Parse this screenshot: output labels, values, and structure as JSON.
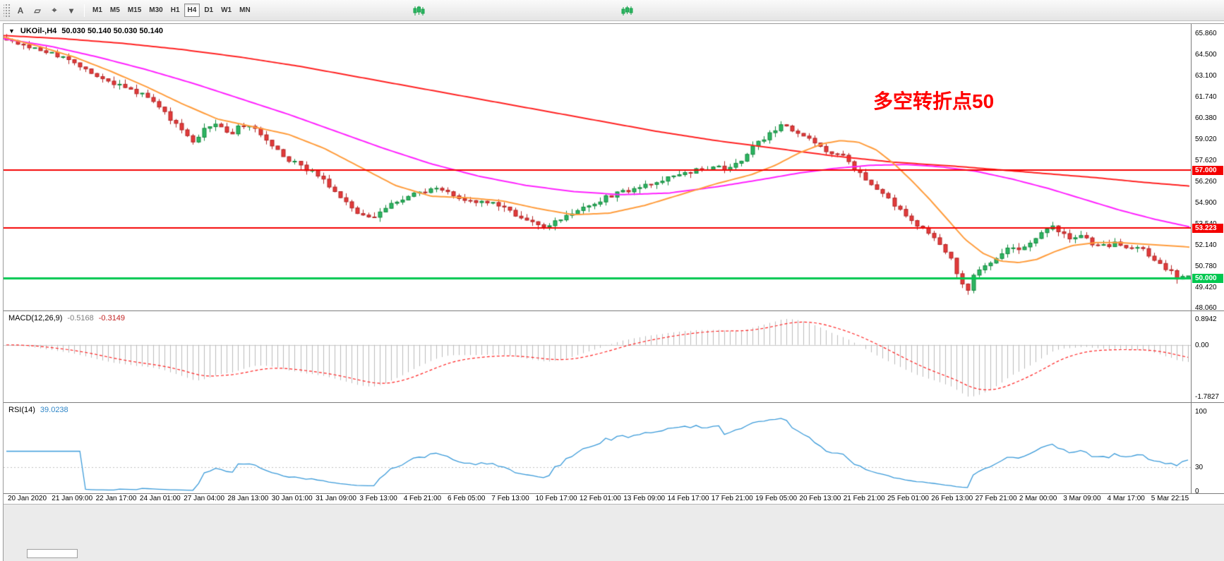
{
  "toolbar": {
    "left_icons": [
      {
        "name": "drag-handle",
        "glyph": ""
      },
      {
        "name": "text-tool",
        "glyph": "A"
      },
      {
        "name": "shapes-tool",
        "glyph": "▱"
      },
      {
        "name": "crosshair-tool",
        "glyph": "⌖"
      },
      {
        "name": "tools-dropdown",
        "glyph": "▾"
      }
    ],
    "timeframes": [
      "M1",
      "M5",
      "M15",
      "M30",
      "H1",
      "H4",
      "D1",
      "W1",
      "MN"
    ],
    "selected_timeframe": "H4",
    "mini_chart_icons": [
      "green-candles-icon-1",
      "green-candles-icon-2"
    ]
  },
  "chart": {
    "collapse_arrow": "▼",
    "symbol_label": "UKOil-,H4",
    "ohlc_label": "50.030 50.140 50.030 50.140",
    "annotation": {
      "text": "多空转折点50",
      "color": "#FF0000"
    },
    "price_axis_labels": [
      "65.860",
      "64.500",
      "63.100",
      "61.740",
      "60.380",
      "59.020",
      "57.620",
      "56.260",
      "54.900",
      "53.540",
      "52.140",
      "50.780",
      "49.420",
      "48.060"
    ],
    "hlines": [
      {
        "price": 57.0,
        "label": "57.000",
        "color": "#F40000",
        "width": 2
      },
      {
        "price": 53.223,
        "label": "53.223",
        "color": "#F40000",
        "width": 2
      },
      {
        "price": 50.0,
        "label": "50.000",
        "color": "#00C850",
        "width": 3
      }
    ]
  },
  "macd": {
    "title": "MACD(12,26,9)",
    "values": [
      "-0.5168",
      "-0.3149"
    ],
    "axis_labels": [
      "0.8942",
      "0.00",
      "-1.7827"
    ]
  },
  "rsi": {
    "title": "RSI(14)",
    "value": "39.0238",
    "axis_labels": [
      "100",
      "30",
      "0"
    ],
    "level": 30
  },
  "time_axis": [
    "20 Jan 2020",
    "21 Jan 09:00",
    "22 Jan 17:00",
    "24 Jan 01:00",
    "27 Jan 04:00",
    "28 Jan 13:00",
    "30 Jan 01:00",
    "31 Jan 09:00",
    "3 Feb 13:00",
    "4 Feb 21:00",
    "6 Feb 05:00",
    "7 Feb 13:00",
    "10 Feb 17:00",
    "12 Feb 01:00",
    "13 Feb 09:00",
    "14 Feb 17:00",
    "17 Feb 21:00",
    "19 Feb 05:00",
    "20 Feb 13:00",
    "21 Feb 21:00",
    "25 Feb 01:00",
    "26 Feb 13:00",
    "27 Feb 21:00",
    "2 Mar 00:00",
    "3 Mar 09:00",
    "4 Mar 17:00",
    "5 Mar 22:15"
  ],
  "chart_data": {
    "type": "candlestick",
    "symbol": "UKOil",
    "timeframe": "H4",
    "n_candles": 210,
    "price_top": 66.45,
    "price_bottom": 47.9,
    "last_ohlc": {
      "open": 50.03,
      "high": 50.14,
      "low": 50.03,
      "close": 50.14
    },
    "price_anchors": [
      [
        0,
        65.5
      ],
      [
        0.02,
        64.9
      ],
      [
        0.04,
        64.5
      ],
      [
        0.055,
        64.0
      ],
      [
        0.075,
        63.2
      ],
      [
        0.1,
        62.3
      ],
      [
        0.115,
        61.9
      ],
      [
        0.125,
        61.5
      ],
      [
        0.14,
        60.2
      ],
      [
        0.152,
        59.3
      ],
      [
        0.158,
        58.8
      ],
      [
        0.165,
        59.4
      ],
      [
        0.175,
        60.1
      ],
      [
        0.185,
        59.5
      ],
      [
        0.19,
        59.4
      ],
      [
        0.2,
        59.9
      ],
      [
        0.21,
        59.6
      ],
      [
        0.226,
        58.4
      ],
      [
        0.24,
        57.6
      ],
      [
        0.255,
        57.0
      ],
      [
        0.263,
        56.7
      ],
      [
        0.275,
        55.8
      ],
      [
        0.29,
        54.6
      ],
      [
        0.3,
        54.0
      ],
      [
        0.308,
        53.8
      ],
      [
        0.32,
        54.6
      ],
      [
        0.33,
        55.0
      ],
      [
        0.337,
        55.2
      ],
      [
        0.35,
        55.5
      ],
      [
        0.36,
        55.7
      ],
      [
        0.374,
        55.6
      ],
      [
        0.385,
        55.2
      ],
      [
        0.395,
        55.0
      ],
      [
        0.411,
        54.9
      ],
      [
        0.425,
        54.3
      ],
      [
        0.44,
        53.8
      ],
      [
        0.448,
        53.6
      ],
      [
        0.455,
        53.4
      ],
      [
        0.47,
        53.8
      ],
      [
        0.485,
        54.5
      ],
      [
        0.5,
        55.0
      ],
      [
        0.522,
        55.6
      ],
      [
        0.54,
        56.0
      ],
      [
        0.559,
        56.4
      ],
      [
        0.58,
        56.9
      ],
      [
        0.596,
        57.2
      ],
      [
        0.61,
        57.1
      ],
      [
        0.62,
        57.4
      ],
      [
        0.633,
        58.6
      ],
      [
        0.645,
        59.3
      ],
      [
        0.655,
        59.8
      ],
      [
        0.663,
        59.7
      ],
      [
        0.67,
        59.3
      ],
      [
        0.68,
        58.9
      ],
      [
        0.69,
        58.4
      ],
      [
        0.707,
        57.9
      ],
      [
        0.72,
        57.0
      ],
      [
        0.73,
        56.2
      ],
      [
        0.744,
        55.3
      ],
      [
        0.755,
        54.4
      ],
      [
        0.77,
        53.4
      ],
      [
        0.782,
        52.8
      ],
      [
        0.79,
        52.0
      ],
      [
        0.8,
        51.1
      ],
      [
        0.806,
        50.0
      ],
      [
        0.812,
        48.9
      ],
      [
        0.819,
        50.3
      ],
      [
        0.83,
        50.8
      ],
      [
        0.84,
        51.4
      ],
      [
        0.848,
        51.9
      ],
      [
        0.856,
        51.8
      ],
      [
        0.865,
        52.3
      ],
      [
        0.875,
        52.9
      ],
      [
        0.885,
        53.3
      ],
      [
        0.893,
        53.0
      ],
      [
        0.9,
        52.5
      ],
      [
        0.91,
        52.8
      ],
      [
        0.92,
        52.2
      ],
      [
        0.93,
        52.0
      ],
      [
        0.94,
        52.3
      ],
      [
        0.95,
        51.8
      ],
      [
        0.96,
        52.1
      ],
      [
        0.967,
        51.3
      ],
      [
        0.975,
        51.0
      ],
      [
        0.985,
        50.4
      ],
      [
        0.993,
        49.9
      ],
      [
        1,
        50.14
      ]
    ],
    "ma_lines": [
      {
        "name": "ma-slow",
        "color": "#FF2222",
        "anchors": [
          [
            0,
            65.7
          ],
          [
            0.05,
            65.5
          ],
          [
            0.1,
            65.2
          ],
          [
            0.15,
            64.8
          ],
          [
            0.2,
            64.3
          ],
          [
            0.25,
            63.7
          ],
          [
            0.3,
            63.0
          ],
          [
            0.35,
            62.3
          ],
          [
            0.4,
            61.6
          ],
          [
            0.45,
            60.9
          ],
          [
            0.5,
            60.2
          ],
          [
            0.55,
            59.5
          ],
          [
            0.6,
            58.9
          ],
          [
            0.65,
            58.4
          ],
          [
            0.7,
            57.9
          ],
          [
            0.75,
            57.5
          ],
          [
            0.8,
            57.25
          ],
          [
            0.84,
            57.0
          ],
          [
            0.88,
            56.75
          ],
          [
            0.92,
            56.5
          ],
          [
            0.96,
            56.2
          ],
          [
            1,
            55.95
          ]
        ]
      },
      {
        "name": "ma-medium",
        "color": "#FF22FF",
        "anchors": [
          [
            0,
            65.5
          ],
          [
            0.04,
            65.0
          ],
          [
            0.08,
            64.3
          ],
          [
            0.12,
            63.5
          ],
          [
            0.16,
            62.6
          ],
          [
            0.2,
            61.6
          ],
          [
            0.24,
            60.6
          ],
          [
            0.28,
            59.5
          ],
          [
            0.32,
            58.4
          ],
          [
            0.36,
            57.4
          ],
          [
            0.4,
            56.6
          ],
          [
            0.44,
            56.0
          ],
          [
            0.48,
            55.6
          ],
          [
            0.52,
            55.4
          ],
          [
            0.56,
            55.5
          ],
          [
            0.6,
            55.9
          ],
          [
            0.64,
            56.4
          ],
          [
            0.67,
            56.8
          ],
          [
            0.7,
            57.1
          ],
          [
            0.73,
            57.3
          ],
          [
            0.76,
            57.35
          ],
          [
            0.79,
            57.2
          ],
          [
            0.82,
            56.9
          ],
          [
            0.85,
            56.4
          ],
          [
            0.88,
            55.8
          ],
          [
            0.91,
            55.1
          ],
          [
            0.94,
            54.4
          ],
          [
            0.97,
            53.8
          ],
          [
            1,
            53.3
          ]
        ]
      },
      {
        "name": "ma-fast",
        "color": "#FF9C3C",
        "anchors": [
          [
            0,
            65.6
          ],
          [
            0.03,
            65.0
          ],
          [
            0.06,
            64.3
          ],
          [
            0.09,
            63.4
          ],
          [
            0.12,
            62.4
          ],
          [
            0.15,
            61.3
          ],
          [
            0.18,
            60.3
          ],
          [
            0.21,
            59.8
          ],
          [
            0.24,
            59.3
          ],
          [
            0.27,
            58.4
          ],
          [
            0.3,
            57.2
          ],
          [
            0.33,
            56.0
          ],
          [
            0.36,
            55.3
          ],
          [
            0.39,
            55.2
          ],
          [
            0.42,
            55.0
          ],
          [
            0.45,
            54.5
          ],
          [
            0.48,
            54.1
          ],
          [
            0.51,
            54.2
          ],
          [
            0.54,
            54.7
          ],
          [
            0.57,
            55.4
          ],
          [
            0.6,
            56.1
          ],
          [
            0.63,
            56.7
          ],
          [
            0.65,
            57.3
          ],
          [
            0.67,
            58.1
          ],
          [
            0.69,
            58.7
          ],
          [
            0.705,
            58.9
          ],
          [
            0.72,
            58.8
          ],
          [
            0.735,
            58.3
          ],
          [
            0.75,
            57.4
          ],
          [
            0.765,
            56.3
          ],
          [
            0.78,
            55.1
          ],
          [
            0.795,
            53.8
          ],
          [
            0.81,
            52.5
          ],
          [
            0.825,
            51.6
          ],
          [
            0.84,
            51.1
          ],
          [
            0.855,
            51.0
          ],
          [
            0.87,
            51.2
          ],
          [
            0.885,
            51.7
          ],
          [
            0.9,
            52.1
          ],
          [
            0.92,
            52.3
          ],
          [
            0.94,
            52.3
          ],
          [
            0.96,
            52.2
          ],
          [
            0.98,
            52.1
          ],
          [
            1,
            52.0
          ]
        ]
      }
    ],
    "macd_display_range": [
      -1.7827,
      0.8942
    ],
    "rsi_last": 39.0238,
    "colors": {
      "bull": "#2DB563",
      "bull_border": "#128A3C",
      "bear": "#E23B3B",
      "bear_border": "#B42525",
      "macd_hist": "#BBBBBB",
      "macd_signal": "#FF2222",
      "macd_zero": "#C8C8C8",
      "rsi_line": "#3A9AD9",
      "rsi_level": "#C0C0C0"
    }
  }
}
